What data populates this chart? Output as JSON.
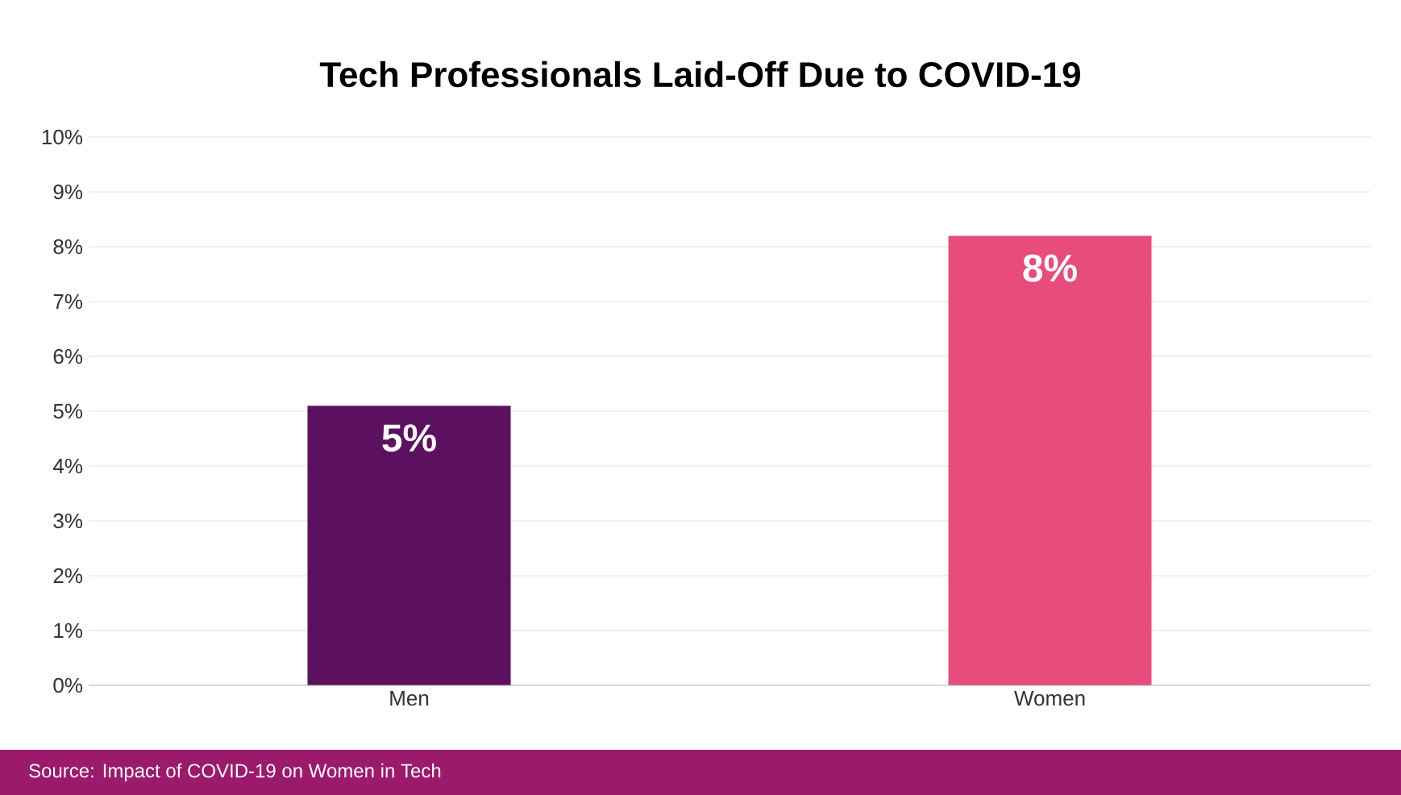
{
  "chart_data": {
    "type": "bar",
    "title": "Tech Professionals Laid-Off Due to COVID-19",
    "categories": [
      "Men",
      "Women"
    ],
    "values": [
      5.1,
      8.2
    ],
    "colors": [
      "#5c1160",
      "#e84c7d"
    ],
    "value_labels": [
      "5%",
      "8%"
    ],
    "ylim": [
      0,
      10
    ],
    "yticks": [
      {
        "value": 0,
        "label": "0%"
      },
      {
        "value": 1,
        "label": "1%"
      },
      {
        "value": 2,
        "label": "2%"
      },
      {
        "value": 3,
        "label": "3%"
      },
      {
        "value": 4,
        "label": "4%"
      },
      {
        "value": 5,
        "label": "5%"
      },
      {
        "value": 6,
        "label": "6%"
      },
      {
        "value": 7,
        "label": "7%"
      },
      {
        "value": 8,
        "label": "8%"
      },
      {
        "value": 9,
        "label": "9%"
      },
      {
        "value": 10,
        "label": "10%"
      }
    ],
    "grid": "y",
    "annotations": [
      "Source: Impact of COVID-19 on Women in Tech"
    ]
  }
}
